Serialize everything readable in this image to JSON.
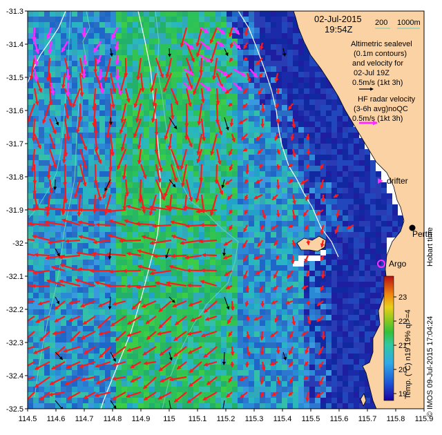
{
  "map": {
    "date": "02-Jul-2015",
    "time": "19:54Z",
    "depth_contours": {
      "shallow": "200",
      "deep": "1000m"
    },
    "altimetry_lines": [
      "Altimetric sealevel",
      "(0.1m contours)",
      "and velocity for",
      "02-Jul 19Z",
      "0.5m/s (1kt 3h)"
    ],
    "radar_lines": [
      "HF radar velocity",
      "(3-6h avg)noQC",
      "0.5m/s (1kt 3h)"
    ],
    "drifter_label": "drifter",
    "argo_label": "Argo",
    "city_label": "Perth",
    "hobart_label": "Hobart time",
    "credit": "© IMOS 09-Jul-2015 17:04:24",
    "colorbar": {
      "label": "Temp. (°C) n19 19% ql>=4",
      "ticks": [
        "19",
        "20",
        "21",
        "22",
        "23"
      ]
    },
    "x_ticks": [
      "114.5",
      "114.6",
      "114.7",
      "114.8",
      "114.9",
      "115",
      "115.1",
      "115.2",
      "115.3",
      "115.4",
      "115.5",
      "115.6",
      "115.7",
      "115.8",
      "115.9"
    ],
    "y_ticks": [
      "-31.3",
      "-31.4",
      "-31.5",
      "-31.6",
      "-31.7",
      "-31.8",
      "-31.9",
      "-32",
      "-32.1",
      "-32.2",
      "-32.3",
      "-32.4",
      "-32.5"
    ],
    "extent": {
      "lon": [
        114.5,
        115.9
      ],
      "lat": [
        -32.5,
        -31.3
      ]
    },
    "colors": {
      "land": "#fbd2a4",
      "radar_arrow": "#ff1a1a",
      "altimetry_arrow": "#000000",
      "highlight": "#ff2bff",
      "contour": "#ffffff",
      "depth_200": "#6ecfb0",
      "depth_1000": "#4dd6c6"
    }
  }
}
